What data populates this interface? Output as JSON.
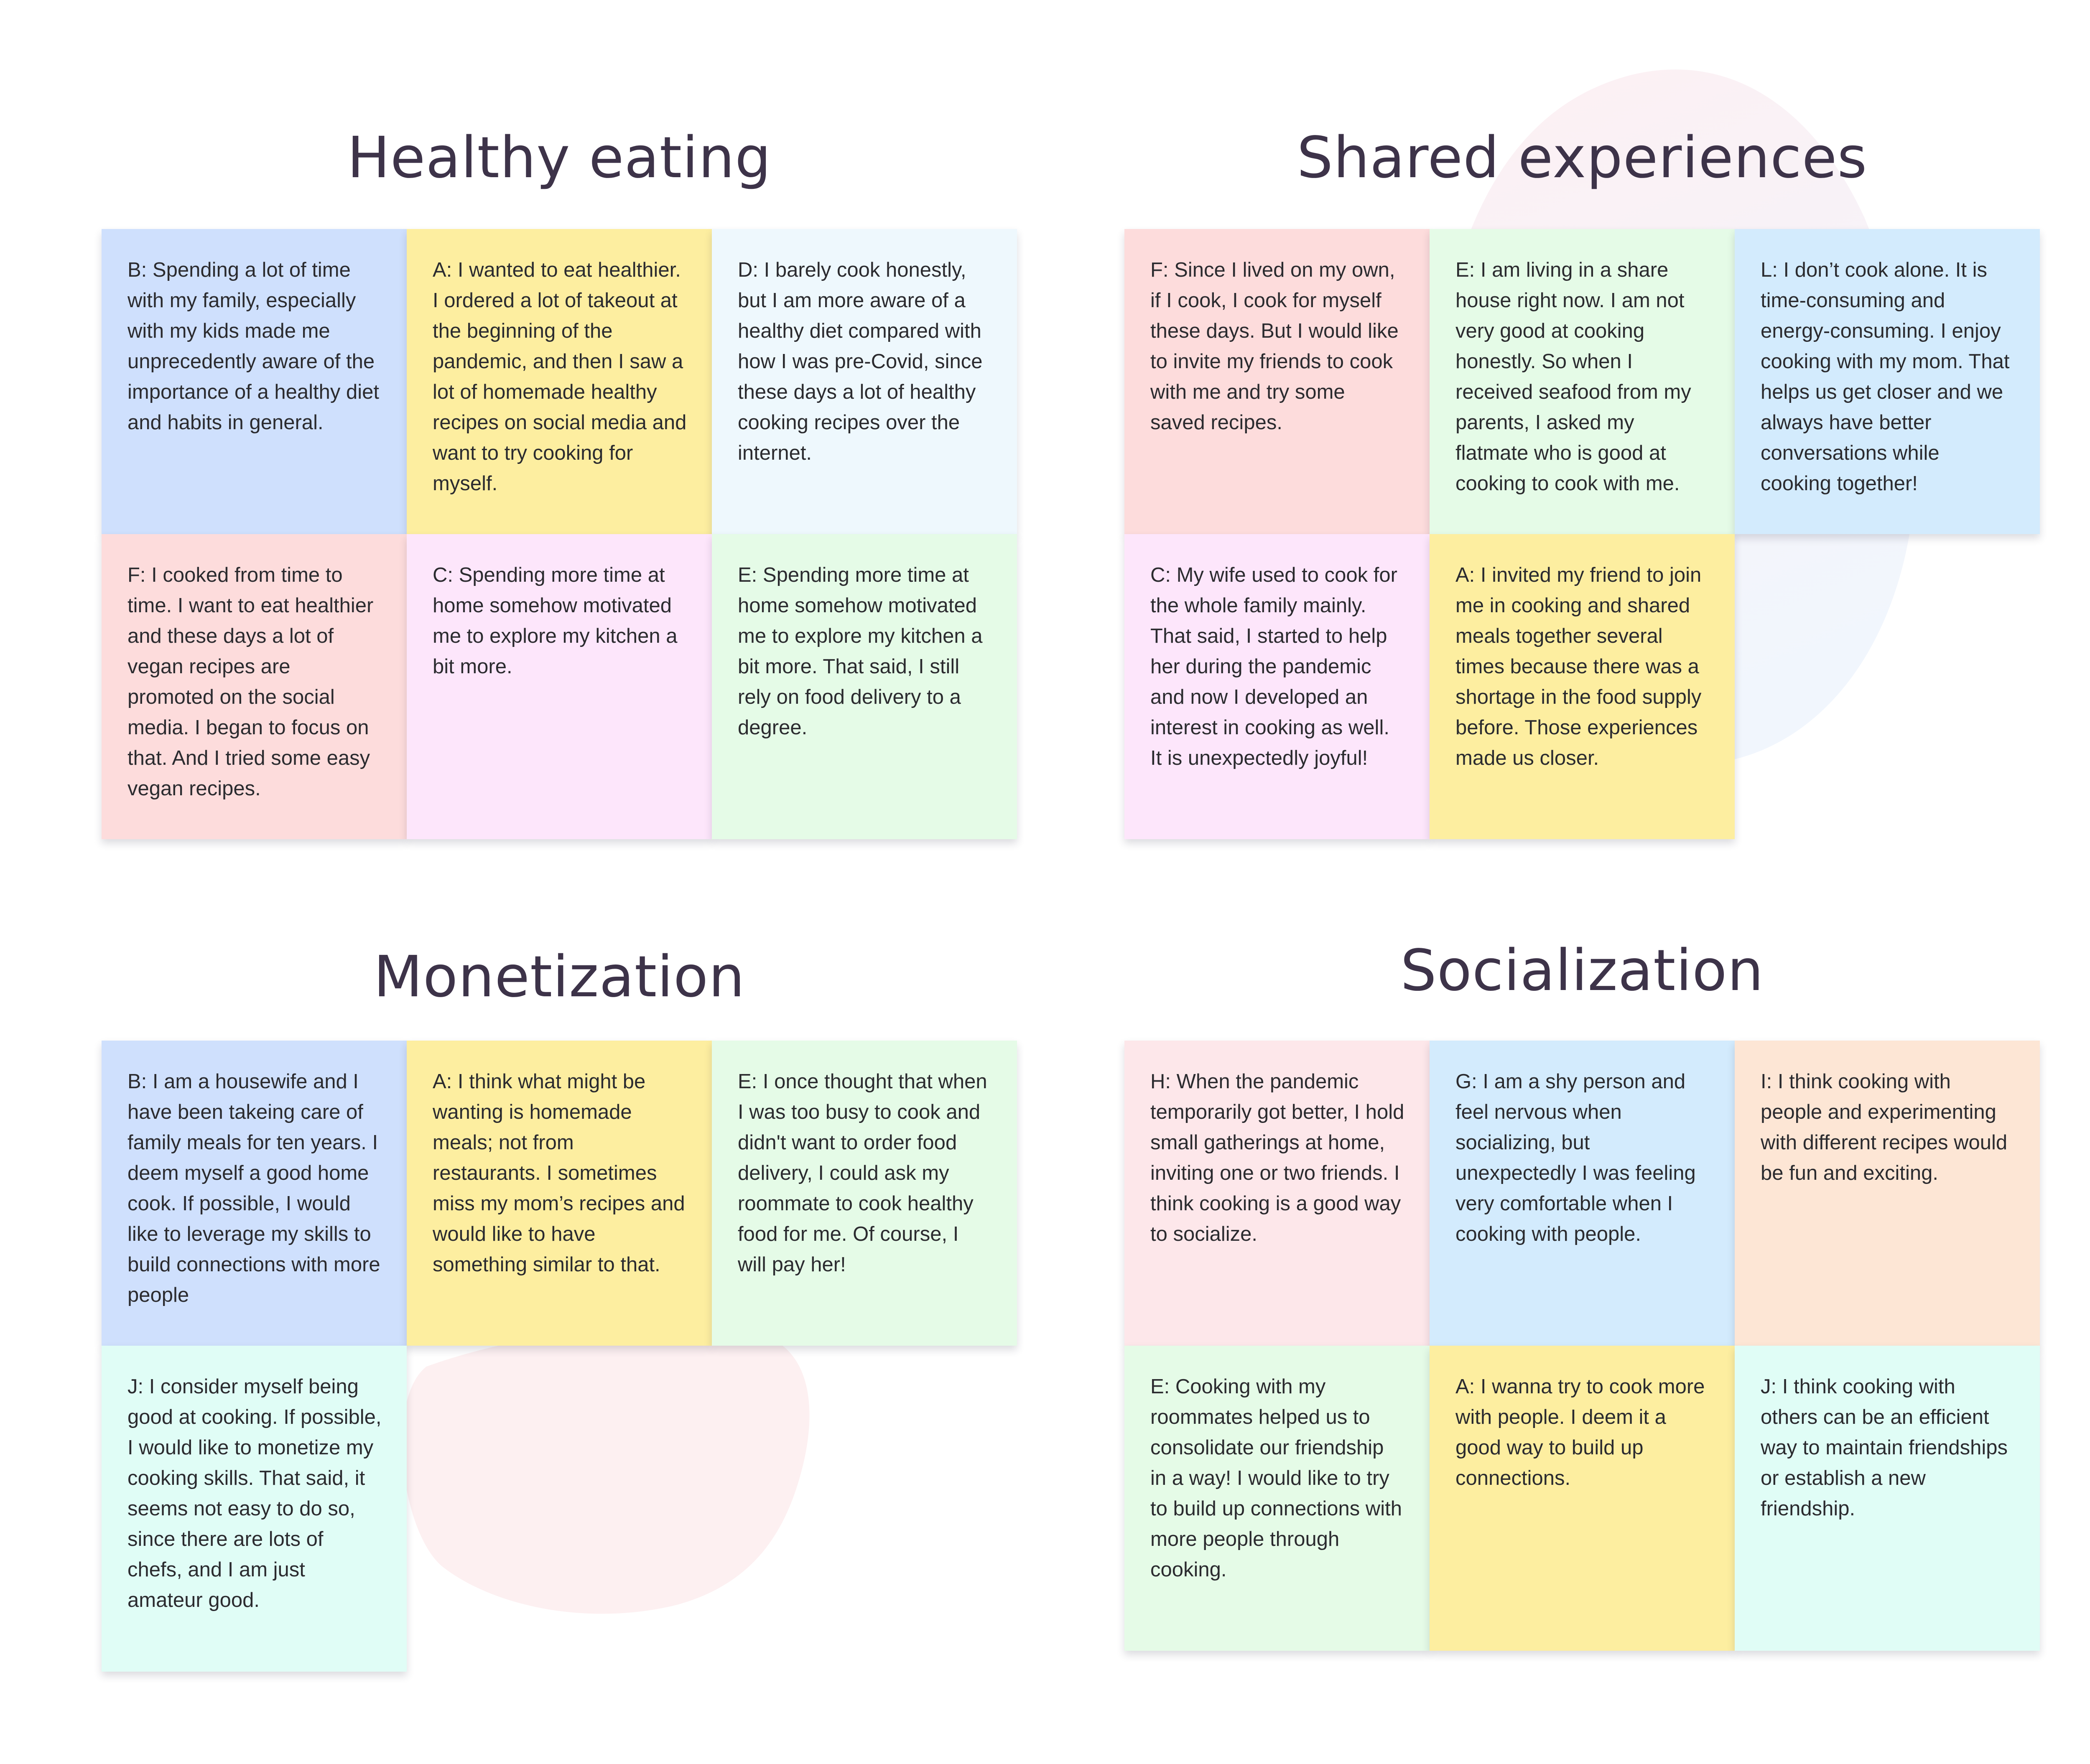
{
  "groups": {
    "healthy_eating": {
      "title": "Healthy eating",
      "notes": [
        "B: Spending a lot of time with my family, especially with my kids made me unprecedently aware of the importance of a healthy diet and habits in general.",
        "A: I wanted to eat healthier. I ordered a lot of takeout at the beginning of the pandemic, and then I saw a lot of homemade healthy recipes on social media and want to try cooking for myself.",
        "D: I barely cook honestly, but I am more aware of a healthy diet compared with how I was pre-Covid, since these days a lot of healthy cooking recipes over the internet.",
        "F: I cooked from time to time. I want to eat healthier and these days a lot of vegan recipes are promoted on the social media. I began to focus on that. And I tried some easy vegan recipes.",
        "C: Spending more time at home somehow motivated me to explore my kitchen a bit more.",
        "E: Spending more time at home somehow motivated me to explore my kitchen a bit more. That said, I still rely on food delivery to a degree."
      ]
    },
    "shared_experiences": {
      "title": "Shared experiences",
      "notes": [
        "F: Since I lived on my own, if I cook, I cook for myself these days. But I would like to invite my friends to cook with me and try some saved recipes.",
        "E: I  am living in a share house right now. I am not very good at cooking honestly. So when I received seafood from my parents, I asked my flatmate who is good at cooking to cook with me.",
        "L: I don’t cook alone. It is time-consuming and energy-consuming. I enjoy cooking with my mom. That helps us get closer and we always have better conversations while cooking together!",
        "C: My wife used to cook for the whole family mainly. That said, I started to help her during the pandemic and now I developed an interest in cooking as well. It is unexpectedly joyful!",
        "A: I invited my friend to join me in cooking and shared meals together several times because there was a shortage in the food supply before. Those experiences made us closer."
      ]
    },
    "monetization": {
      "title": "Monetization",
      "notes": [
        "B: I am a housewife and I have been takeing care of family meals for ten years. I deem myself a good home cook. If possible, I would like to leverage my skills to build connections with more people",
        "A: I think what might be wanting is homemade meals; not from restaurants. I sometimes miss my mom’s recipes and would like to have something similar to that.",
        "E: I once thought that when I was too busy to cook and didn't want to order food delivery, I could ask my roommate to cook healthy food for me. Of course, I will pay her!",
        "J: I consider myself being good at cooking. If possible, I would like to monetize my cooking skills. That said, it seems not easy to do so, since there are lots of chefs, and I am just amateur good."
      ]
    },
    "socialization": {
      "title": "Socialization",
      "notes": [
        "H: When the pandemic temporarily got better, I hold small gatherings at home, inviting one or two friends. I think cooking is a good way to socialize.",
        "G: I am a shy person and feel nervous when socializing, but unexpectedly I was feeling very comfortable when I cooking with people.",
        "I: I think cooking with people and experimenting with different recipes would be fun and exciting.",
        "E: Cooking with my roommates helped us to consolidate our friendship in a way! I would like to try to build up connections with more people through cooking.",
        "A: I wanna try to cook more with people. I deem it a good way to build up connections.",
        "J: I think cooking with others can be an efficient way to maintain friendships or establish a new friendship."
      ]
    }
  },
  "colors": {
    "title_text": "#3d3349",
    "note_text": "#2b2b2f",
    "blue": "#cfe0fd",
    "yellow": "#fdeea0",
    "ice": "#eef8fd",
    "red": "#fddcdc",
    "pink": "#fde6fb",
    "green": "#e5fbe7",
    "mint": "#e0fdf6",
    "sky": "#d3ebfd",
    "rose": "#fde7ea",
    "peach": "#fde6d5"
  }
}
